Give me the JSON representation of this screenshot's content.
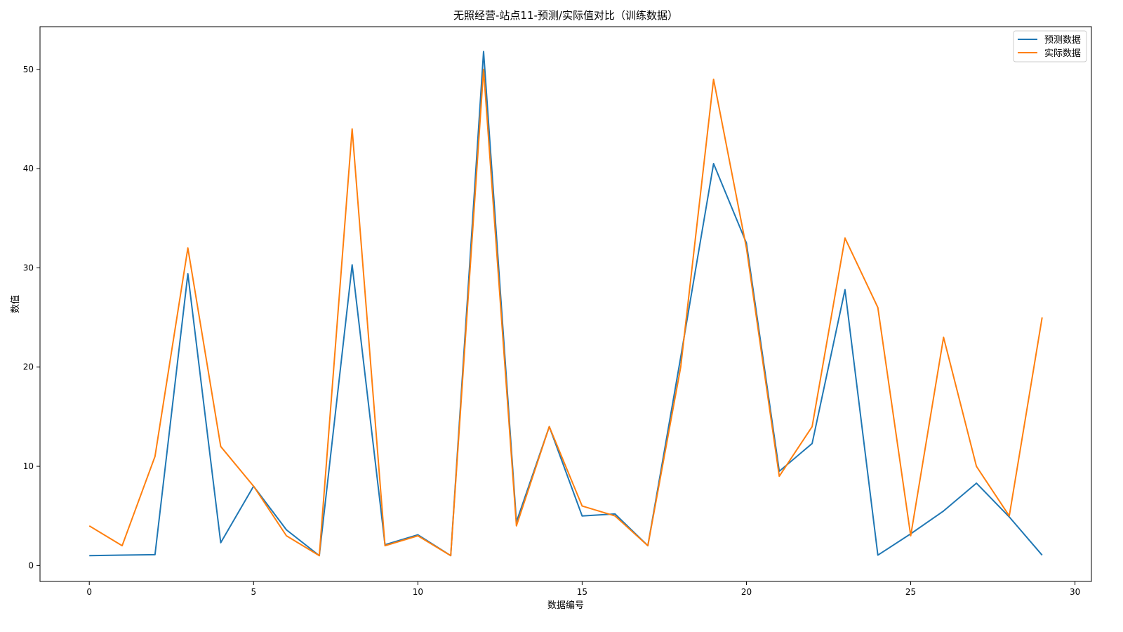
{
  "chart_data": {
    "type": "line",
    "title": "无照经营-站点11-预测/实际值对比（训练数据）",
    "xlabel": "数据编号",
    "ylabel": "数值",
    "xlim": [
      -1.5,
      30.5
    ],
    "ylim": [
      -1.6,
      54.3
    ],
    "xticks": [
      0,
      5,
      10,
      15,
      20,
      25,
      30
    ],
    "yticks": [
      0,
      10,
      20,
      30,
      40,
      50
    ],
    "grid": false,
    "legend": "top-right",
    "x": [
      0,
      1,
      2,
      3,
      4,
      5,
      6,
      7,
      8,
      9,
      10,
      11,
      12,
      13,
      14,
      15,
      16,
      17,
      18,
      19,
      20,
      21,
      22,
      23,
      24,
      25,
      26,
      27,
      28,
      29
    ],
    "series": [
      {
        "name": "预测数据",
        "color": "#1f77b4",
        "values": [
          1.0,
          1.05,
          1.1,
          29.4,
          2.3,
          8.0,
          3.6,
          1.0,
          30.3,
          2.1,
          3.1,
          1.0,
          51.8,
          4.4,
          14.0,
          5.0,
          5.2,
          2.0,
          21.0,
          40.5,
          32.5,
          9.5,
          12.3,
          27.8,
          1.05,
          3.2,
          5.5,
          8.3,
          4.9,
          1.05
        ]
      },
      {
        "name": "实际数据",
        "color": "#ff7f0e",
        "values": [
          4,
          2,
          11,
          32,
          12,
          8,
          3,
          1,
          44,
          2,
          3,
          1,
          50,
          4,
          14,
          6,
          5,
          2,
          20,
          49,
          32,
          9,
          14,
          33,
          26,
          3,
          23,
          10,
          5,
          25
        ]
      }
    ]
  }
}
